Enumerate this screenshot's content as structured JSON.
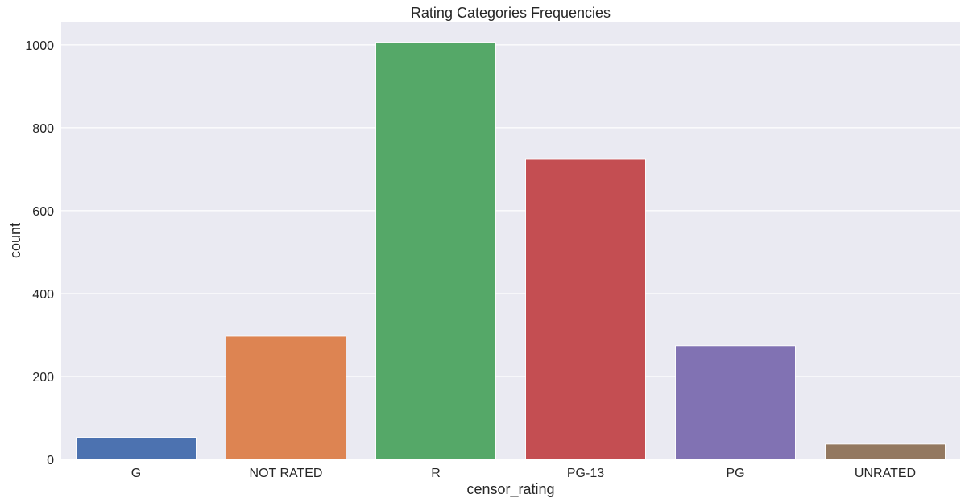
{
  "chart_data": {
    "type": "bar",
    "title": "Rating Categories Frequencies",
    "xlabel": "censor_rating",
    "ylabel": "count",
    "categories": [
      "G",
      "NOT RATED",
      "R",
      "PG-13",
      "PG",
      "UNRATED"
    ],
    "values": [
      53,
      297,
      1006,
      724,
      274,
      37
    ],
    "colors": [
      "#4c72b0",
      "#dd8452",
      "#55a868",
      "#c44e52",
      "#8172b3",
      "#937860"
    ],
    "yticks": [
      0,
      200,
      400,
      600,
      800,
      1000
    ],
    "ytick_labels": [
      "0",
      "200",
      "400",
      "600",
      "800",
      "1000"
    ],
    "ylim": [
      0,
      1056
    ],
    "grid": true,
    "background": "#eaeaf2"
  }
}
